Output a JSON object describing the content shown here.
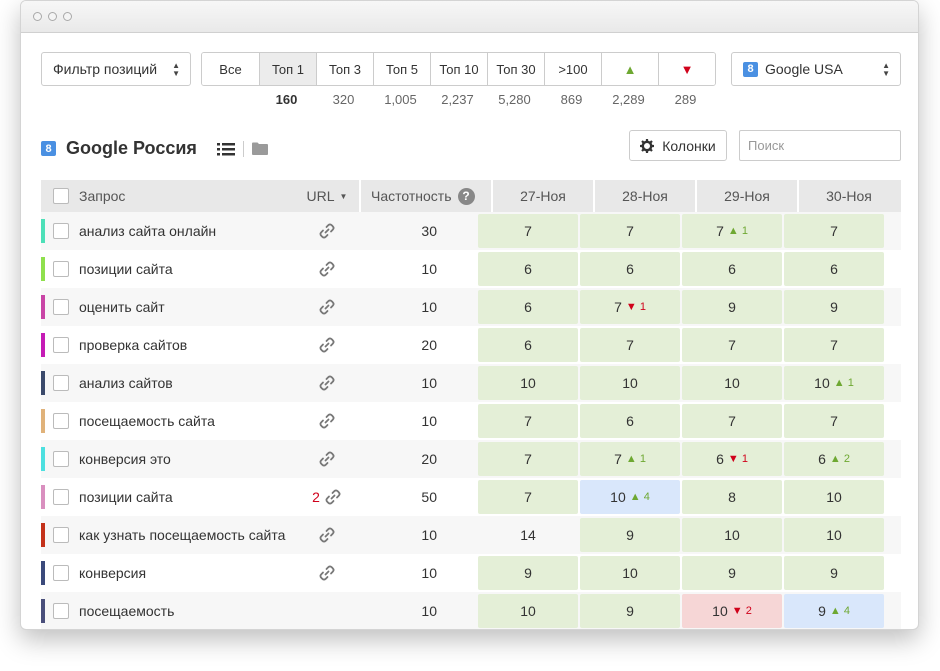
{
  "filters": {
    "position_filter": "Фильтр позиций",
    "segments": [
      {
        "label": "Все",
        "count": ""
      },
      {
        "label": "Топ 1",
        "count": "160"
      },
      {
        "label": "Топ 3",
        "count": "320"
      },
      {
        "label": "Топ 5",
        "count": "1,005"
      },
      {
        "label": "Топ 10",
        "count": "2,237"
      },
      {
        "label": "Топ 30",
        "count": "5,280"
      },
      {
        "label": ">100",
        "count": "869"
      },
      {
        "label": "▲",
        "count": "2,289"
      },
      {
        "label": "▼",
        "count": "289"
      }
    ],
    "engine_select": "Google USA"
  },
  "section": {
    "title": "Google Россия",
    "columns_button": "Колонки",
    "search_placeholder": "Поиск"
  },
  "table": {
    "headers": {
      "query": "Запрос",
      "url": "URL",
      "freq": "Частотность",
      "help": "?"
    },
    "dates": [
      "27-Ноя",
      "28-Ноя",
      "29-Ноя",
      "30-Ноя"
    ],
    "rows": [
      {
        "color": "#4de0b8",
        "query": "анализ сайта онлайн",
        "freq": "30",
        "url_errors": "",
        "link": true,
        "pos": [
          {
            "v": "7",
            "d": "",
            "dir": "",
            "bg": "green"
          },
          {
            "v": "7",
            "d": "",
            "dir": "",
            "bg": "green"
          },
          {
            "v": "7",
            "d": "1",
            "dir": "up",
            "bg": "green"
          },
          {
            "v": "7",
            "d": "",
            "dir": "",
            "bg": "green"
          }
        ]
      },
      {
        "color": "#8fe04d",
        "query": "позиции сайта",
        "freq": "10",
        "url_errors": "",
        "link": true,
        "pos": [
          {
            "v": "6",
            "d": "",
            "dir": "",
            "bg": "green"
          },
          {
            "v": "6",
            "d": "",
            "dir": "",
            "bg": "green"
          },
          {
            "v": "6",
            "d": "",
            "dir": "",
            "bg": "green"
          },
          {
            "v": "6",
            "d": "",
            "dir": "",
            "bg": "green"
          }
        ]
      },
      {
        "color": "#c945a6",
        "query": "оценить сайт",
        "freq": "10",
        "url_errors": "",
        "link": true,
        "pos": [
          {
            "v": "6",
            "d": "",
            "dir": "",
            "bg": "green"
          },
          {
            "v": "7",
            "d": "1",
            "dir": "down",
            "bg": "green"
          },
          {
            "v": "9",
            "d": "",
            "dir": "",
            "bg": "green"
          },
          {
            "v": "9",
            "d": "",
            "dir": "",
            "bg": "green"
          }
        ]
      },
      {
        "color": "#c51bb5",
        "query": "проверка сайтов",
        "freq": "20",
        "url_errors": "",
        "link": true,
        "pos": [
          {
            "v": "6",
            "d": "",
            "dir": "",
            "bg": "green"
          },
          {
            "v": "7",
            "d": "",
            "dir": "",
            "bg": "green"
          },
          {
            "v": "7",
            "d": "",
            "dir": "",
            "bg": "green"
          },
          {
            "v": "7",
            "d": "",
            "dir": "",
            "bg": "green"
          }
        ]
      },
      {
        "color": "#3b4a6b",
        "query": "анализ сайтов",
        "freq": "10",
        "url_errors": "",
        "link": true,
        "pos": [
          {
            "v": "10",
            "d": "",
            "dir": "",
            "bg": "green"
          },
          {
            "v": "10",
            "d": "",
            "dir": "",
            "bg": "green"
          },
          {
            "v": "10",
            "d": "",
            "dir": "",
            "bg": "green"
          },
          {
            "v": "10",
            "d": "1",
            "dir": "up",
            "bg": "green"
          }
        ]
      },
      {
        "color": "#e0b27a",
        "query": "посещаемость сайта",
        "freq": "10",
        "url_errors": "",
        "link": true,
        "pos": [
          {
            "v": "7",
            "d": "",
            "dir": "",
            "bg": "green"
          },
          {
            "v": "6",
            "d": "",
            "dir": "",
            "bg": "green"
          },
          {
            "v": "7",
            "d": "",
            "dir": "",
            "bg": "green"
          },
          {
            "v": "7",
            "d": "",
            "dir": "",
            "bg": "green"
          }
        ]
      },
      {
        "color": "#4de0e0",
        "query": "конверсия это",
        "freq": "20",
        "url_errors": "",
        "link": true,
        "pos": [
          {
            "v": "7",
            "d": "",
            "dir": "",
            "bg": "green"
          },
          {
            "v": "7",
            "d": "1",
            "dir": "up",
            "bg": "green"
          },
          {
            "v": "6",
            "d": "1",
            "dir": "down",
            "bg": "green"
          },
          {
            "v": "6",
            "d": "2",
            "dir": "up",
            "bg": "green"
          }
        ]
      },
      {
        "color": "#d98fbf",
        "query": "позиции сайта",
        "freq": "50",
        "url_errors": "2",
        "link": true,
        "pos": [
          {
            "v": "7",
            "d": "",
            "dir": "",
            "bg": "green"
          },
          {
            "v": "10",
            "d": "4",
            "dir": "up",
            "bg": "blue"
          },
          {
            "v": "8",
            "d": "",
            "dir": "",
            "bg": "green"
          },
          {
            "v": "10",
            "d": "",
            "dir": "",
            "bg": "green"
          }
        ]
      },
      {
        "color": "#c4321a",
        "query": "как узнать посещаемость сайта",
        "freq": "10",
        "url_errors": "",
        "link": true,
        "pos": [
          {
            "v": "14",
            "d": "",
            "dir": "",
            "bg": "none"
          },
          {
            "v": "9",
            "d": "",
            "dir": "",
            "bg": "green"
          },
          {
            "v": "10",
            "d": "",
            "dir": "",
            "bg": "green"
          },
          {
            "v": "10",
            "d": "",
            "dir": "",
            "bg": "green"
          }
        ]
      },
      {
        "color": "#3b4a7b",
        "query": "конверсия",
        "freq": "10",
        "url_errors": "",
        "link": true,
        "pos": [
          {
            "v": "9",
            "d": "",
            "dir": "",
            "bg": "green"
          },
          {
            "v": "10",
            "d": "",
            "dir": "",
            "bg": "green"
          },
          {
            "v": "9",
            "d": "",
            "dir": "",
            "bg": "green"
          },
          {
            "v": "9",
            "d": "",
            "dir": "",
            "bg": "green"
          }
        ]
      },
      {
        "color": "#4a4f7b",
        "query": "посещаемость",
        "freq": "10",
        "url_errors": "",
        "link": false,
        "pos": [
          {
            "v": "10",
            "d": "",
            "dir": "",
            "bg": "green"
          },
          {
            "v": "9",
            "d": "",
            "dir": "",
            "bg": "green"
          },
          {
            "v": "10",
            "d": "2",
            "dir": "down",
            "bg": "red"
          },
          {
            "v": "9",
            "d": "4",
            "dir": "up",
            "bg": "blue"
          }
        ]
      }
    ]
  }
}
